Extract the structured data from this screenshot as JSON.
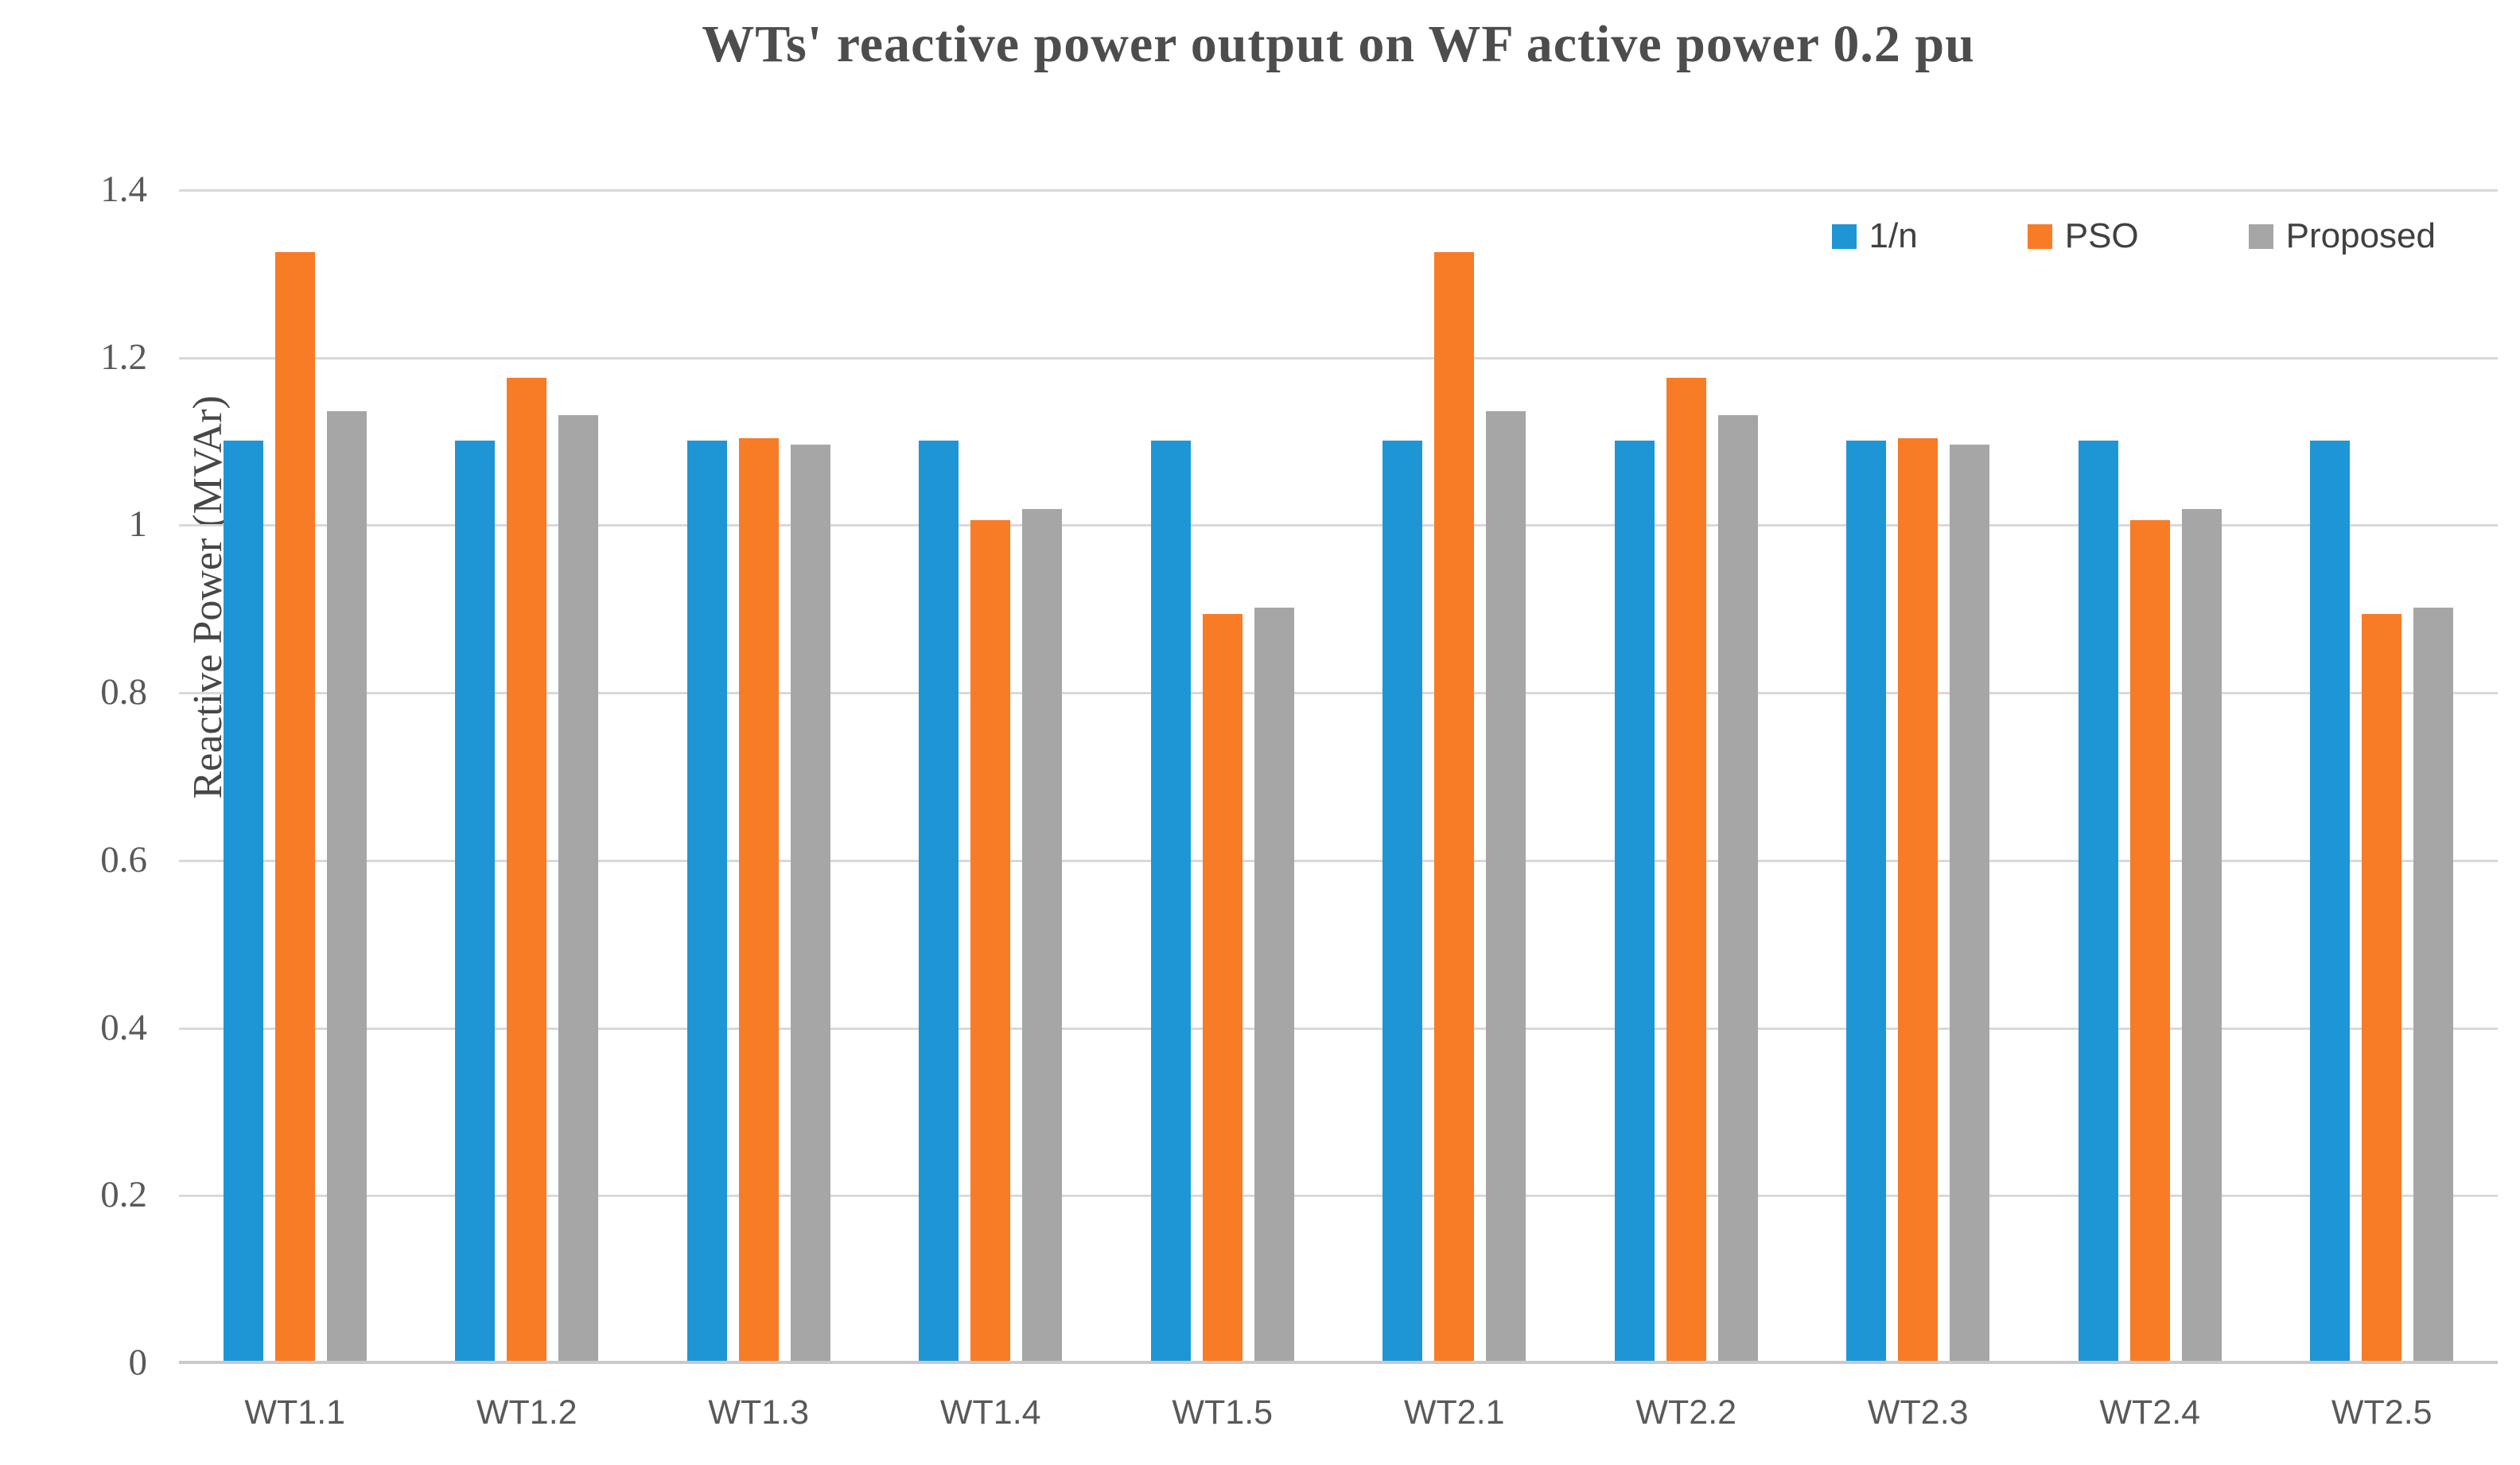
{
  "title": "WTs' reactive power output on WF active power 0.2 pu",
  "y_axis": {
    "title": "Reactive Power (MVAr)",
    "tick_values": [
      0,
      0.2,
      0.4,
      0.6,
      0.8,
      1,
      1.2,
      1.4
    ],
    "tick_labels": [
      "0",
      "0.2",
      "0.4",
      "0.6",
      "0.8",
      "1",
      "1.2",
      "1.4"
    ]
  },
  "colors": {
    "series_1n": "#1e96d5",
    "series_pso": "#f87b26",
    "series_proposed": "#a6a6a6",
    "gridline": "#d9d9d9",
    "axis_line": "#c9c9c9",
    "title_text": "#4d4d4d",
    "tick_text": "#595959"
  },
  "chart_data": {
    "type": "bar",
    "title": "WTs' reactive power output on WF active power 0.2 pu",
    "xlabel": "",
    "ylabel": "Reactive Power (MVAr)",
    "ylim": [
      0,
      1.4
    ],
    "grid": "horizontal",
    "legend_position": "top-right-inside",
    "categories": [
      "WT1.1",
      "WT1.2",
      "WT1.3",
      "WT1.4",
      "WT1.5",
      "WT2.1",
      "WT2.2",
      "WT2.3",
      "WT2.4",
      "WT2.5"
    ],
    "series": [
      {
        "name": "1/n",
        "color": "#1e96d5",
        "values": [
          1.1,
          1.1,
          1.1,
          1.1,
          1.1,
          1.1,
          1.1,
          1.1,
          1.1,
          1.1
        ]
      },
      {
        "name": "PSO",
        "color": "#f87b26",
        "values": [
          1.325,
          1.175,
          1.103,
          1.005,
          0.893,
          1.325,
          1.175,
          1.103,
          1.005,
          0.893
        ]
      },
      {
        "name": "Proposed",
        "color": "#a6a6a6",
        "values": [
          1.135,
          1.13,
          1.095,
          1.018,
          0.901,
          1.135,
          1.13,
          1.095,
          1.018,
          0.901
        ]
      }
    ]
  }
}
